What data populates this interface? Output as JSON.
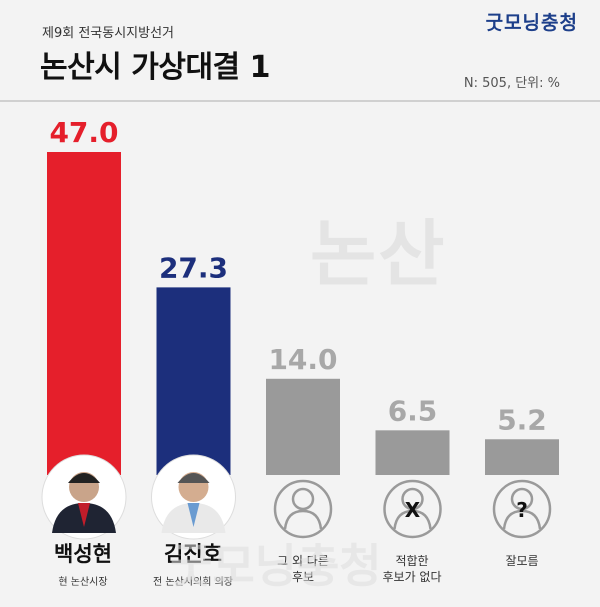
{
  "brand": "굿모닝충청",
  "subtitle": "제9회 전국동시지방선거",
  "title": "논산시 가상대결 1",
  "meta": "N: 505, 단위: %",
  "watermark": "논산",
  "watermark_bottom": "굿모닝충청",
  "colors": {
    "red": "#e51f2b",
    "navy": "#1c2f7c",
    "gray": "#9a9a9a"
  },
  "chart_data": {
    "type": "bar",
    "categories": [
      "백성현",
      "김진호",
      "그 외 다른 후보",
      "적합한 후보가 없다",
      "잘모름"
    ],
    "values": [
      47.0,
      27.3,
      14.0,
      6.5,
      5.2
    ],
    "value_labels": [
      "47.0",
      "27.3",
      "14.0",
      "6.5",
      "5.2"
    ],
    "bar_colors": [
      "#e51f2b",
      "#1c2f7c",
      "#9a9a9a",
      "#9a9a9a",
      "#9a9a9a"
    ],
    "label_colors": [
      "#e51f2b",
      "#1c2f7c",
      "#a8a8a8",
      "#a8a8a8",
      "#a8a8a8"
    ],
    "unit": "%"
  },
  "candidates": [
    {
      "name": "백성현",
      "role": "현 논산시장",
      "icon": "person-photo"
    },
    {
      "name": "김진호",
      "role": "전 논산시의회 의장",
      "icon": "person-photo"
    }
  ],
  "others": [
    {
      "label_line1": "그 외 다른",
      "label_line2": "후보",
      "icon": "person-outline-icon"
    },
    {
      "label_line1": "적합한",
      "label_line2": "후보가 없다",
      "icon": "x-mark",
      "mark": "X"
    },
    {
      "label_line1": "잘모름",
      "label_line2": "",
      "icon": "question-mark",
      "mark": "?"
    }
  ]
}
